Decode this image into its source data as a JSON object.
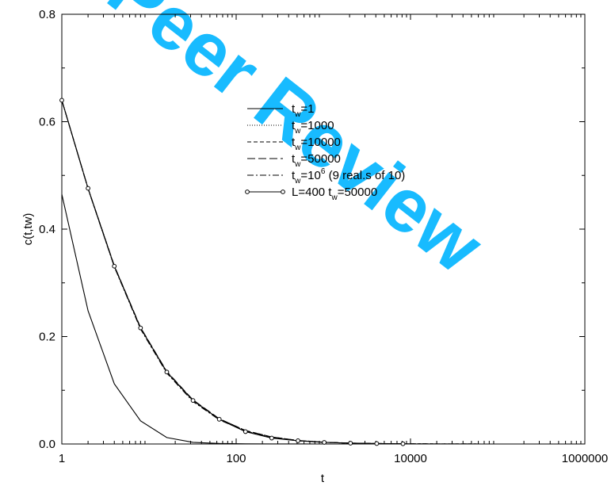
{
  "watermark": {
    "text": "Peer Review",
    "color": "#00b4ff"
  },
  "chart_data": {
    "type": "line",
    "title": "",
    "xlabel": "t",
    "ylabel": "c(t,tw)",
    "xscale": "log",
    "xlim": [
      1,
      1000000
    ],
    "ylim": [
      0,
      0.8
    ],
    "x_tick_labels": [
      "1",
      "100",
      "10000",
      "1000000"
    ],
    "y_tick_labels": [
      "0.0",
      "0.2",
      "0.4",
      "0.6",
      "0.8"
    ],
    "grid": false,
    "legend_position": "top-center",
    "series": [
      {
        "name": "t_w=1",
        "legend_base": "t",
        "legend_sub": "w",
        "legend_rest": "=1",
        "legend_sup": "",
        "legend_tail": "",
        "style": "solid",
        "markers": false,
        "x": [
          1,
          2,
          4,
          8,
          16,
          32,
          64,
          128,
          256,
          1000,
          10000,
          100000
        ],
        "y": [
          0.465,
          0.248,
          0.112,
          0.043,
          0.012,
          0.003,
          0.001,
          0.0003,
          0.0001,
          0.0,
          0.0,
          0.0
        ]
      },
      {
        "name": "t_w=1000",
        "legend_base": "t",
        "legend_sub": "w",
        "legend_rest": "=1000",
        "legend_sup": "",
        "legend_tail": "",
        "style": "dotted",
        "markers": false,
        "x": [
          1,
          2,
          4,
          8,
          16,
          32,
          64,
          128,
          256,
          512,
          1024,
          2048,
          4096,
          8192,
          16384,
          32768,
          65536,
          131072
        ],
        "y": [
          0.64,
          0.475,
          0.33,
          0.215,
          0.133,
          0.08,
          0.046,
          0.024,
          0.012,
          0.006,
          0.003,
          0.0015,
          0.0008,
          0.0004,
          0.0002,
          0.0001,
          0.0,
          0.0
        ]
      },
      {
        "name": "t_w=10000",
        "legend_base": "t",
        "legend_sub": "w",
        "legend_rest": "=10000",
        "legend_sup": "",
        "legend_tail": "",
        "style": "dash-short",
        "markers": false,
        "x": [
          1,
          2,
          4,
          8,
          16,
          32,
          64,
          128,
          256,
          512,
          1024,
          2048,
          4096,
          8192,
          16384,
          32768,
          65536,
          131072
        ],
        "y": [
          0.64,
          0.476,
          0.331,
          0.216,
          0.134,
          0.081,
          0.047,
          0.025,
          0.013,
          0.0065,
          0.0032,
          0.0016,
          0.0008,
          0.0004,
          0.0002,
          0.0001,
          0.0,
          0.0
        ]
      },
      {
        "name": "t_w=50000",
        "legend_base": "t",
        "legend_sub": "w",
        "legend_rest": "=50000",
        "legend_sup": "",
        "legend_tail": "",
        "style": "dash-long",
        "markers": false,
        "x": [
          1,
          2,
          4,
          8,
          16,
          32,
          64,
          128,
          256,
          512,
          1024,
          2048,
          4096,
          8192,
          16384,
          32768,
          65536,
          131072
        ],
        "y": [
          0.64,
          0.476,
          0.332,
          0.217,
          0.135,
          0.082,
          0.047,
          0.025,
          0.013,
          0.0066,
          0.0033,
          0.0017,
          0.0009,
          0.0004,
          0.0002,
          0.0001,
          0.0,
          0.0
        ]
      },
      {
        "name": "t_w=10^6 (9 real.s of 10)",
        "legend_base": "t",
        "legend_sub": "w",
        "legend_rest": "=10",
        "legend_sup": "6",
        "legend_tail": "  (9 real.s of 10)",
        "style": "dash-dot",
        "markers": false,
        "x": [
          1,
          2,
          4,
          8,
          16,
          32,
          64,
          128,
          256,
          512,
          1024,
          2048,
          4096,
          8192,
          16384,
          32768,
          65536,
          131072
        ],
        "y": [
          0.64,
          0.475,
          0.33,
          0.214,
          0.132,
          0.079,
          0.045,
          0.024,
          0.012,
          0.006,
          0.003,
          0.0015,
          0.0008,
          0.0004,
          0.0002,
          0.0001,
          0.0,
          0.0
        ]
      },
      {
        "name": "L=400 t_w=50000",
        "legend_base": "L=400 t",
        "legend_sub": "w",
        "legend_rest": "=50000",
        "legend_sup": "",
        "legend_tail": "",
        "style": "solid",
        "markers": true,
        "x": [
          1,
          2,
          4,
          8,
          16,
          32,
          64,
          128,
          256,
          512,
          1024,
          2048,
          4096,
          8192
        ],
        "y": [
          0.64,
          0.476,
          0.331,
          0.216,
          0.134,
          0.081,
          0.046,
          0.023,
          0.011,
          0.006,
          0.003,
          0.0015,
          0.0008,
          0.0004
        ]
      }
    ]
  }
}
